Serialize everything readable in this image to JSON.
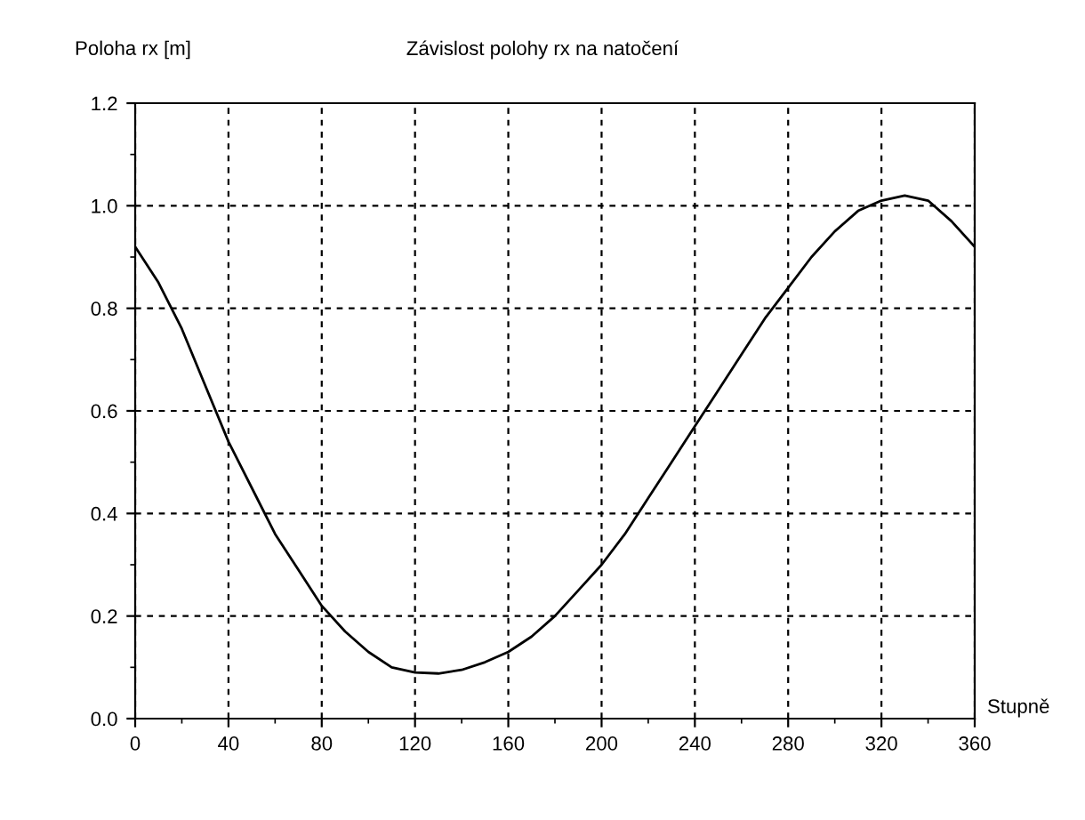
{
  "chart_data": {
    "type": "line",
    "title": "Závislost polohy rx na natočení",
    "xlabel": "Stupně",
    "ylabel": "Poloha rx [m]",
    "x": [
      0,
      10,
      20,
      30,
      40,
      50,
      60,
      70,
      80,
      90,
      100,
      110,
      120,
      130,
      140,
      150,
      160,
      170,
      180,
      190,
      200,
      210,
      220,
      230,
      240,
      250,
      260,
      270,
      280,
      290,
      300,
      310,
      320,
      330,
      340,
      350,
      360
    ],
    "series": [
      {
        "color": "#000000",
        "values": [
          0.92,
          0.85,
          0.76,
          0.65,
          0.54,
          0.45,
          0.36,
          0.29,
          0.22,
          0.17,
          0.13,
          0.1,
          0.09,
          0.088,
          0.095,
          0.11,
          0.13,
          0.16,
          0.2,
          0.25,
          0.3,
          0.36,
          0.43,
          0.5,
          0.57,
          0.64,
          0.71,
          0.78,
          0.84,
          0.9,
          0.95,
          0.99,
          1.01,
          1.02,
          1.01,
          0.97,
          0.92
        ]
      }
    ],
    "xlim": [
      0,
      360
    ],
    "ylim": [
      0,
      1.2
    ],
    "xticks": [
      0,
      40,
      80,
      120,
      160,
      200,
      240,
      280,
      320,
      360
    ],
    "yticks": [
      {
        "value": 0,
        "label": "0.0"
      },
      0.2,
      0.4,
      0.6,
      0.8,
      {
        "value": 1,
        "label": "1.0"
      },
      1.2
    ],
    "grid": true,
    "marker": "none",
    "line_style": "solid",
    "legend": false
  }
}
